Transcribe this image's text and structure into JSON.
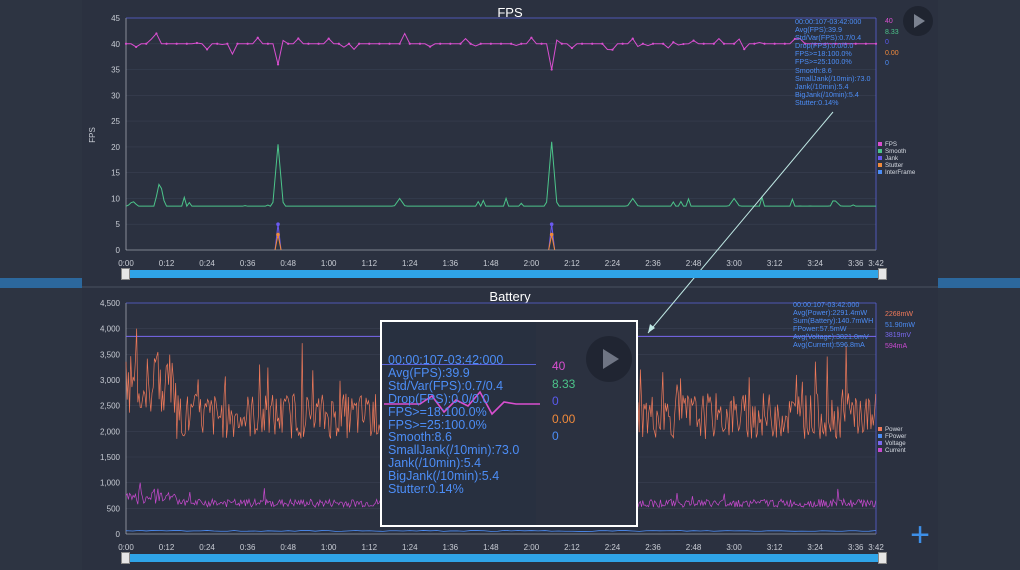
{
  "fps_chart": {
    "title": "FPS",
    "ylabel": "FPS",
    "yticks": [
      "0",
      "5",
      "10",
      "15",
      "20",
      "25",
      "30",
      "35",
      "40",
      "45"
    ],
    "xticks": [
      "0:00",
      "0:12",
      "0:24",
      "0:36",
      "0:48",
      "1:00",
      "1:12",
      "1:24",
      "1:36",
      "1:48",
      "2:00",
      "2:12",
      "2:24",
      "2:36",
      "2:48",
      "3:00",
      "3:12",
      "3:24",
      "3:36",
      "3:42"
    ],
    "stats": [
      "00:00:107-03:42:000",
      "Avg(FPS):39.9",
      "Std/Var(FPS):0.7/0.4",
      "Drop(FPS):0.0/0.0",
      "FPS>=18:100.0%",
      "FPS>=25:100.0%",
      "Smooth:8.6",
      "SmallJank(/10min):73.0",
      "Jank(/10min):5.4",
      "BigJank(/10min):5.4",
      "Stutter:0.14%"
    ],
    "values": [
      {
        "text": "40",
        "color": "#d94fd0"
      },
      {
        "text": "8.33",
        "color": "#4cc48a"
      },
      {
        "text": "0",
        "color": "#5a5af0"
      },
      {
        "text": "0.00",
        "color": "#f08a3c"
      },
      {
        "text": "0",
        "color": "#4c8df6"
      }
    ],
    "legend": [
      {
        "label": "FPS",
        "color": "#d94fd0"
      },
      {
        "label": "Smooth",
        "color": "#4cc48a"
      },
      {
        "label": "Jank",
        "color": "#6a5af0"
      },
      {
        "label": "Stutter",
        "color": "#f08a3c"
      },
      {
        "label": "InterFrame",
        "color": "#4c8df6"
      }
    ]
  },
  "chart_data": [
    {
      "type": "line",
      "title": "FPS",
      "ylabel": "FPS",
      "ylim": [
        0,
        45
      ],
      "xlim_seconds": [
        0,
        222
      ],
      "series": [
        {
          "name": "FPS",
          "color": "#d94fd0",
          "base": 40,
          "dips": [
            {
              "x": 9,
              "y": 42
            },
            {
              "x": 31,
              "y": 38
            },
            {
              "x": 45,
              "y": 36
            },
            {
              "x": 60,
              "y": 41
            },
            {
              "x": 83,
              "y": 42
            },
            {
              "x": 100,
              "y": 41
            },
            {
              "x": 126,
              "y": 35
            },
            {
              "x": 150,
              "y": 41
            },
            {
              "x": 175,
              "y": 41
            },
            {
              "x": 200,
              "y": 41
            }
          ]
        },
        {
          "name": "Smooth",
          "color": "#4cc48a",
          "base": 8.5,
          "spikes": [
            {
              "x": 2,
              "y": 9.5
            },
            {
              "x": 10,
              "y": 13.5
            },
            {
              "x": 45,
              "y": 20.5
            },
            {
              "x": 81,
              "y": 10
            },
            {
              "x": 126,
              "y": 21
            },
            {
              "x": 150,
              "y": 10
            },
            {
              "x": 180,
              "y": 10
            },
            {
              "x": 210,
              "y": 9.5
            }
          ]
        },
        {
          "name": "Jank",
          "color": "#6a5af0",
          "points": [
            {
              "x": 45,
              "y": 5
            },
            {
              "x": 126,
              "y": 5
            }
          ]
        },
        {
          "name": "Stutter",
          "color": "#f08a3c",
          "points": [
            {
              "x": 45,
              "y": 3
            },
            {
              "x": 126,
              "y": 3
            }
          ]
        }
      ]
    },
    {
      "type": "line",
      "title": "Battery",
      "ylim": [
        0,
        4500
      ],
      "xlim_seconds": [
        0,
        222
      ],
      "series": [
        {
          "name": "Power",
          "color": "#f07a5a",
          "base": 2300,
          "range": [
            1600,
            4000
          ]
        },
        {
          "name": "FPower",
          "color": "#4c8df6",
          "base": 60
        },
        {
          "name": "Voltage",
          "color": "#7a6af0",
          "base": 3850
        },
        {
          "name": "Current",
          "color": "#c94ad0",
          "base": 600,
          "range": [
            400,
            1000
          ]
        }
      ]
    }
  ],
  "battery_chart": {
    "title": "Battery",
    "yticks": [
      "0",
      "500",
      "1,000",
      "1,500",
      "2,000",
      "2,500",
      "3,000",
      "3,500",
      "4,000",
      "4,500"
    ],
    "xticks": [
      "0:00",
      "0:12",
      "0:24",
      "0:36",
      "0:48",
      "1:00",
      "1:12",
      "1:24",
      "1:36",
      "1:48",
      "2:00",
      "2:12",
      "2:24",
      "2:36",
      "2:48",
      "3:00",
      "3:12",
      "3:24",
      "3:36",
      "3:42"
    ],
    "stats": [
      "00:00:107-03:42:000",
      "Avg(Power):2291.4mW",
      "Sum(Battery):140.7mWH",
      "FPower:57.5mW",
      "Avg(Voltage):3821.0mV",
      "Avg(Current):596.8mA"
    ],
    "values": [
      {
        "text": "2268mW",
        "color": "#f07a5a"
      },
      {
        "text": "51.90mW",
        "color": "#4c8df6"
      },
      {
        "text": "3819mV",
        "color": "#7a6af0"
      },
      {
        "text": "594mA",
        "color": "#c94ad0"
      }
    ],
    "legend": [
      {
        "label": "Power",
        "color": "#f07a5a"
      },
      {
        "label": "FPower",
        "color": "#4c8df6"
      },
      {
        "label": "Voltage",
        "color": "#7a6af0"
      },
      {
        "label": "Current",
        "color": "#c94ad0"
      }
    ]
  },
  "zoom": {
    "stats": [
      "00:00:107-03:42:000",
      "Avg(FPS):39.9",
      "Std/Var(FPS):0.7/0.4",
      "Drop(FPS):0.0/0.0",
      "FPS>=18:100.0%",
      "FPS>=25:100.0%",
      "Smooth:8.6",
      "SmallJank(/10min):73.0",
      "Jank(/10min):5.4",
      "BigJank(/10min):5.4",
      "Stutter:0.14%"
    ],
    "values": [
      {
        "text": "40",
        "color": "#d94fd0"
      },
      {
        "text": "8.33",
        "color": "#4cc48a"
      },
      {
        "text": "0",
        "color": "#5a5af0"
      },
      {
        "text": "0.00",
        "color": "#f08a3c"
      },
      {
        "text": "0",
        "color": "#4c8df6"
      }
    ]
  }
}
